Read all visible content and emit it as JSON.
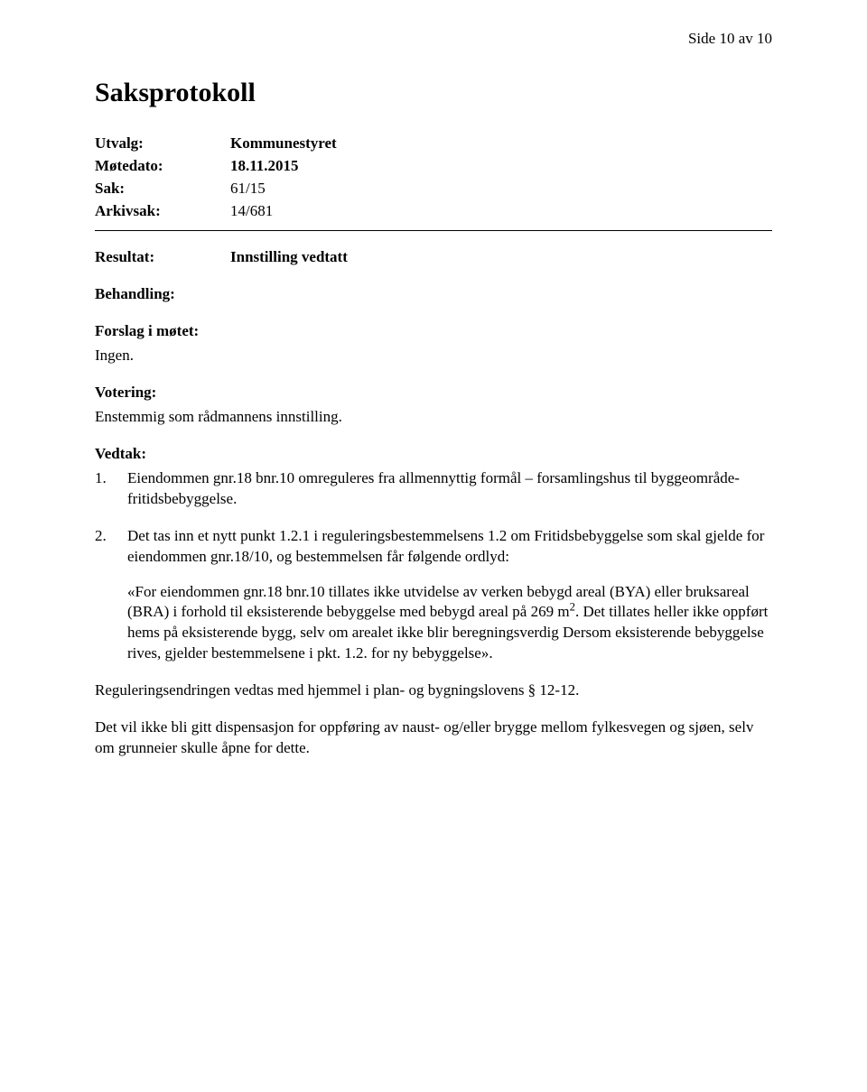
{
  "page_number": "Side 10 av 10",
  "title": "Saksprotokoll",
  "meta": {
    "utvalg_label": "Utvalg:",
    "utvalg_value": "Kommunestyret",
    "motedato_label": "Møtedato:",
    "motedato_value": "18.11.2015",
    "sak_label": "Sak:",
    "sak_value": "61/15",
    "arkivsak_label": "Arkivsak:",
    "arkivsak_value": "14/681"
  },
  "resultat": {
    "label": "Resultat:",
    "value": "Innstilling vedtatt"
  },
  "behandling": {
    "label": "Behandling:"
  },
  "forslag": {
    "label": "Forslag i møtet:",
    "text": "Ingen."
  },
  "votering": {
    "label": "Votering:",
    "text": "Enstemmig som rådmannens innstilling."
  },
  "vedtak": {
    "label": "Vedtak:",
    "items": [
      {
        "num": "1.",
        "text": "Eiendommen gnr.18 bnr.10 omreguleres fra allmennyttig formål – forsamlingshus til byggeområde- fritidsbebyggelse."
      },
      {
        "num": "2.",
        "text_a": "Det tas inn et nytt punkt 1.2.1 i reguleringsbestemmelsens 1.2 om Fritidsbebyggelse som skal gjelde for eiendommen gnr.18/10, og bestemmelsen får følgende ordlyd:",
        "quote_a": "«For eiendommen gnr.18 bnr.10 tillates ikke utvidelse av verken bebygd areal (BYA) eller bruksareal (BRA) i forhold til eksisterende bebyggelse med bebygd areal på 269 m",
        "quote_b": ". Det tillates heller ikke oppført hems på eksisterende bygg, selv om arealet ikke blir beregningsverdig Dersom eksisterende bebyggelse rives, gjelder bestemmelsene i pkt. 1.2. for ny bebyggelse».",
        "sup": "2"
      }
    ]
  },
  "reguleringsendring": "Reguleringsendringen vedtas med hjemmel i plan- og bygningslovens § 12-12.",
  "dispensasjon": "Det vil ikke bli gitt dispensasjon for oppføring av naust- og/eller brygge mellom fylkesvegen og sjøen, selv om grunneier skulle åpne for dette."
}
